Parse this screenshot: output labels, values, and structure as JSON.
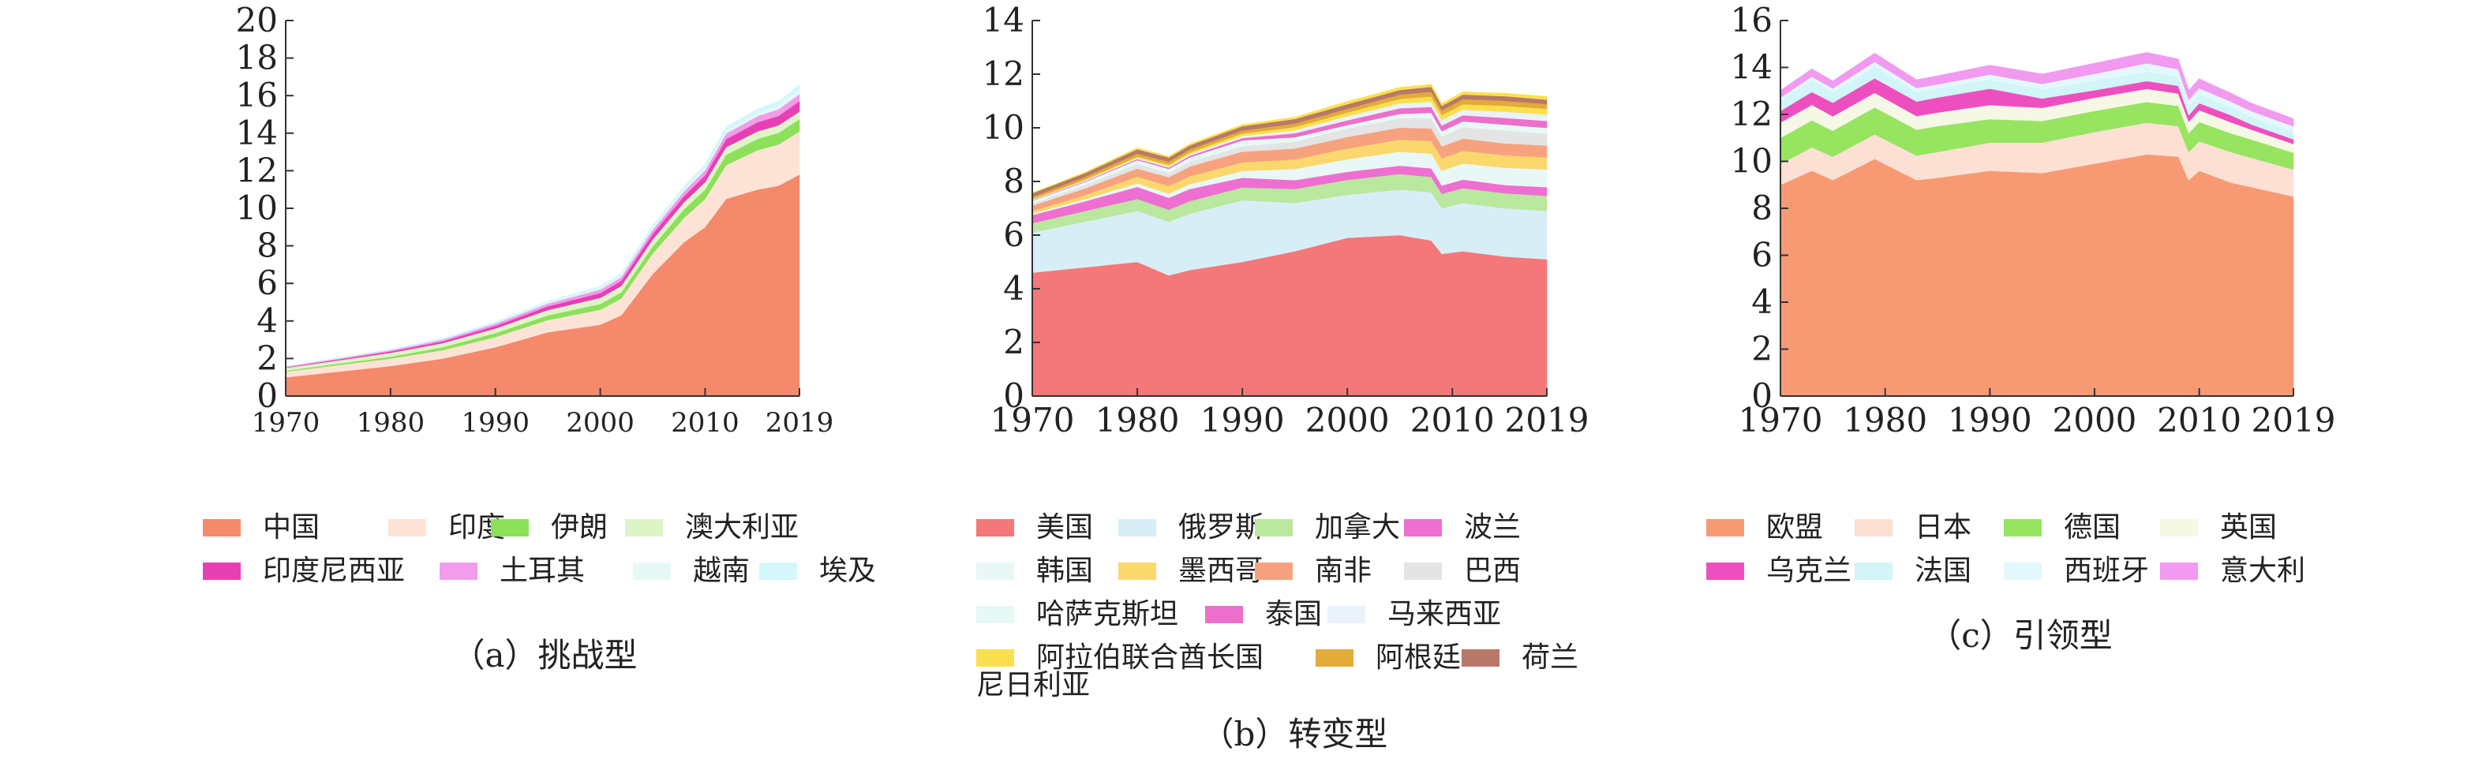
{
  "x_ticks": [
    "1970",
    "1980",
    "1990",
    "2000",
    "2010",
    "2019"
  ],
  "palette_notes": "colours per series listed below",
  "chart_data": [
    {
      "type": "area",
      "stacked": true,
      "caption": "（a）挑战型",
      "x": [
        1970,
        1975,
        1980,
        1985,
        1990,
        1995,
        2000,
        2002,
        2005,
        2008,
        2010,
        2012,
        2015,
        2017,
        2019
      ],
      "ylim": [
        0,
        20
      ],
      "y_ticks": [
        0,
        2,
        4,
        6,
        8,
        10,
        12,
        14,
        16,
        18,
        20
      ],
      "grid": false,
      "series": [
        {
          "name": "中国",
          "color": "#F4896B",
          "values": [
            1.0,
            1.3,
            1.6,
            2.0,
            2.6,
            3.4,
            3.8,
            4.3,
            6.5,
            8.2,
            9.0,
            10.5,
            11.0,
            11.2,
            11.8
          ]
        },
        {
          "name": "印度",
          "color": "#FCE3D6",
          "values": [
            0.3,
            0.35,
            0.4,
            0.45,
            0.55,
            0.65,
            0.8,
            0.9,
            1.1,
            1.3,
            1.5,
            1.8,
            2.1,
            2.2,
            2.3
          ]
        },
        {
          "name": "伊朗",
          "color": "#8CE05A",
          "values": [
            0.05,
            0.08,
            0.1,
            0.15,
            0.2,
            0.25,
            0.3,
            0.32,
            0.38,
            0.45,
            0.5,
            0.55,
            0.6,
            0.62,
            0.65
          ]
        },
        {
          "name": "澳大利亚",
          "color": "#DDF5C6",
          "values": [
            0.15,
            0.17,
            0.2,
            0.22,
            0.25,
            0.28,
            0.33,
            0.34,
            0.36,
            0.38,
            0.39,
            0.4,
            0.4,
            0.4,
            0.4
          ]
        },
        {
          "name": "印度尼西亚",
          "color": "#E740B5",
          "values": [
            0.03,
            0.05,
            0.08,
            0.1,
            0.14,
            0.2,
            0.26,
            0.28,
            0.3,
            0.33,
            0.37,
            0.43,
            0.48,
            0.5,
            0.56
          ]
        },
        {
          "name": "土耳其",
          "color": "#F39CEB",
          "values": [
            0.04,
            0.05,
            0.07,
            0.09,
            0.12,
            0.15,
            0.19,
            0.2,
            0.22,
            0.25,
            0.28,
            0.3,
            0.33,
            0.36,
            0.38
          ]
        },
        {
          "name": "越南",
          "color": "#E6F9F6",
          "values": [
            0.01,
            0.01,
            0.01,
            0.01,
            0.02,
            0.03,
            0.05,
            0.06,
            0.08,
            0.1,
            0.13,
            0.15,
            0.18,
            0.2,
            0.25
          ]
        },
        {
          "name": "埃及",
          "color": "#D4F7FB",
          "values": [
            0.02,
            0.03,
            0.04,
            0.06,
            0.08,
            0.09,
            0.12,
            0.13,
            0.15,
            0.17,
            0.19,
            0.2,
            0.21,
            0.22,
            0.23
          ]
        }
      ]
    },
    {
      "type": "area",
      "stacked": true,
      "caption": "（b）转变型",
      "x": [
        1970,
        1975,
        1980,
        1983,
        1985,
        1990,
        1995,
        2000,
        2005,
        2008,
        2009,
        2011,
        2015,
        2019
      ],
      "ylim": [
        0,
        14
      ],
      "y_ticks": [
        0,
        2,
        4,
        6,
        8,
        10,
        12,
        14
      ],
      "grid": false,
      "series": [
        {
          "name": "美国",
          "color": "#F4777A",
          "values": [
            4.6,
            4.8,
            5.0,
            4.5,
            4.7,
            5.0,
            5.4,
            5.9,
            6.0,
            5.8,
            5.3,
            5.4,
            5.2,
            5.1
          ]
        },
        {
          "name": "俄罗斯",
          "color": "#D8EEF7",
          "values": [
            1.5,
            1.7,
            1.9,
            2.0,
            2.1,
            2.3,
            1.8,
            1.6,
            1.7,
            1.8,
            1.7,
            1.8,
            1.8,
            1.8
          ]
        },
        {
          "name": "加拿大",
          "color": "#B9E89E",
          "values": [
            0.35,
            0.4,
            0.45,
            0.45,
            0.47,
            0.48,
            0.52,
            0.56,
            0.58,
            0.57,
            0.54,
            0.55,
            0.56,
            0.57
          ]
        },
        {
          "name": "波兰",
          "color": "#EE6ED1",
          "values": [
            0.3,
            0.36,
            0.45,
            0.44,
            0.45,
            0.36,
            0.33,
            0.3,
            0.31,
            0.32,
            0.31,
            0.32,
            0.31,
            0.32
          ]
        },
        {
          "name": "韩国",
          "color": "#E9F8F7",
          "values": [
            0.05,
            0.08,
            0.13,
            0.16,
            0.18,
            0.25,
            0.42,
            0.47,
            0.52,
            0.55,
            0.55,
            0.6,
            0.64,
            0.66
          ]
        },
        {
          "name": "墨西哥",
          "color": "#FBD86D",
          "values": [
            0.1,
            0.15,
            0.25,
            0.28,
            0.3,
            0.32,
            0.35,
            0.4,
            0.45,
            0.47,
            0.46,
            0.47,
            0.47,
            0.45
          ]
        },
        {
          "name": "南非",
          "color": "#F7A27F",
          "values": [
            0.2,
            0.25,
            0.3,
            0.33,
            0.36,
            0.4,
            0.41,
            0.43,
            0.45,
            0.47,
            0.45,
            0.46,
            0.44,
            0.44
          ]
        },
        {
          "name": "巴西",
          "color": "#E4E4E4",
          "values": [
            0.08,
            0.12,
            0.18,
            0.16,
            0.18,
            0.2,
            0.26,
            0.32,
            0.34,
            0.38,
            0.36,
            0.43,
            0.48,
            0.44
          ]
        },
        {
          "name": "哈萨克斯坦",
          "color": "#E6F9F6",
          "values": [
            0.1,
            0.12,
            0.14,
            0.15,
            0.16,
            0.22,
            0.16,
            0.12,
            0.17,
            0.2,
            0.2,
            0.21,
            0.22,
            0.22
          ]
        },
        {
          "name": "泰国",
          "color": "#EC6FCB",
          "values": [
            0.02,
            0.03,
            0.04,
            0.05,
            0.06,
            0.09,
            0.15,
            0.18,
            0.21,
            0.22,
            0.22,
            0.23,
            0.25,
            0.26
          ]
        },
        {
          "name": "马来西亚",
          "color": "#EAF2FB",
          "values": [
            0.02,
            0.03,
            0.04,
            0.05,
            0.06,
            0.08,
            0.11,
            0.15,
            0.18,
            0.2,
            0.2,
            0.21,
            0.23,
            0.24
          ]
        },
        {
          "name": "阿拉伯联合酋长国",
          "color": "#FAE04E",
          "values": [
            0.02,
            0.03,
            0.05,
            0.06,
            0.07,
            0.09,
            0.12,
            0.14,
            0.17,
            0.19,
            0.19,
            0.2,
            0.22,
            0.21
          ]
        },
        {
          "name": "阿根廷",
          "color": "#E2AB3A",
          "values": [
            0.09,
            0.1,
            0.11,
            0.11,
            0.11,
            0.11,
            0.13,
            0.14,
            0.16,
            0.18,
            0.17,
            0.19,
            0.19,
            0.18
          ]
        },
        {
          "name": "荷兰",
          "color": "#B8786A",
          "values": [
            0.13,
            0.14,
            0.16,
            0.15,
            0.15,
            0.16,
            0.17,
            0.17,
            0.17,
            0.18,
            0.17,
            0.17,
            0.17,
            0.16
          ]
        },
        {
          "name": "尼日利亚",
          "color": "#FAE04E",
          "values": [
            0.02,
            0.03,
            0.05,
            0.05,
            0.05,
            0.06,
            0.07,
            0.1,
            0.1,
            0.09,
            0.09,
            0.1,
            0.11,
            0.12
          ]
        }
      ]
    },
    {
      "type": "area",
      "stacked": true,
      "caption": "（c）引领型",
      "x": [
        1970,
        1973,
        1975,
        1979,
        1983,
        1985,
        1990,
        1995,
        2000,
        2005,
        2008,
        2009,
        2010,
        2013,
        2015,
        2019
      ],
      "ylim": [
        0,
        16
      ],
      "y_ticks": [
        0,
        2,
        4,
        6,
        8,
        10,
        12,
        14,
        16
      ],
      "grid": false,
      "series": [
        {
          "name": "欧盟",
          "color": "#F79A74",
          "values": [
            9.0,
            9.6,
            9.2,
            10.1,
            9.2,
            9.3,
            9.6,
            9.5,
            9.9,
            10.3,
            10.2,
            9.2,
            9.6,
            9.1,
            8.9,
            8.5
          ]
        },
        {
          "name": "日本",
          "color": "#FCE0D3",
          "values": [
            0.9,
            1.0,
            1.0,
            1.05,
            1.05,
            1.1,
            1.2,
            1.3,
            1.35,
            1.35,
            1.3,
            1.2,
            1.25,
            1.3,
            1.25,
            1.15
          ]
        },
        {
          "name": "德国",
          "color": "#96E460",
          "values": [
            1.1,
            1.15,
            1.1,
            1.15,
            1.1,
            1.1,
            1.0,
            0.92,
            0.9,
            0.88,
            0.86,
            0.8,
            0.83,
            0.8,
            0.78,
            0.72
          ]
        },
        {
          "name": "英国",
          "color": "#F5F8E4",
          "values": [
            0.65,
            0.66,
            0.62,
            0.62,
            0.58,
            0.58,
            0.6,
            0.56,
            0.56,
            0.56,
            0.53,
            0.49,
            0.5,
            0.47,
            0.42,
            0.37
          ]
        },
        {
          "name": "乌克兰",
          "color": "#EE4FBF",
          "values": [
            0.5,
            0.55,
            0.58,
            0.62,
            0.62,
            0.64,
            0.7,
            0.4,
            0.32,
            0.33,
            0.33,
            0.28,
            0.3,
            0.3,
            0.22,
            0.2
          ]
        },
        {
          "name": "法国",
          "color": "#D2F5F7",
          "values": [
            0.45,
            0.5,
            0.45,
            0.5,
            0.4,
            0.38,
            0.38,
            0.38,
            0.4,
            0.4,
            0.38,
            0.36,
            0.37,
            0.34,
            0.32,
            0.3
          ]
        },
        {
          "name": "西班牙",
          "color": "#E3F8FD",
          "values": [
            0.12,
            0.15,
            0.16,
            0.2,
            0.18,
            0.18,
            0.22,
            0.24,
            0.3,
            0.36,
            0.32,
            0.29,
            0.27,
            0.24,
            0.25,
            0.25
          ]
        },
        {
          "name": "意大利",
          "color": "#F19AF0",
          "values": [
            0.3,
            0.33,
            0.32,
            0.37,
            0.35,
            0.36,
            0.4,
            0.42,
            0.45,
            0.46,
            0.44,
            0.4,
            0.4,
            0.36,
            0.34,
            0.33
          ]
        }
      ]
    }
  ]
}
